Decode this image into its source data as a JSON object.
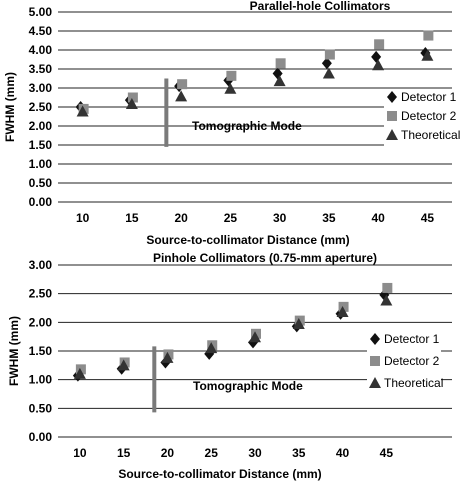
{
  "chart_data": [
    {
      "type": "scatter",
      "title": "Parallel-hole Collimators",
      "xlabel": "Source-to-collimator Distance (mm)",
      "ylabel": "FWHM (mm)",
      "x": [
        10,
        15,
        20,
        25,
        30,
        35,
        40,
        45
      ],
      "ylim": [
        0,
        5
      ],
      "yticks": [
        "0.00",
        "0.50",
        "1.00",
        "1.50",
        "2.00",
        "2.50",
        "3.00",
        "3.50",
        "4.00",
        "4.50",
        "5.00"
      ],
      "xticks": [
        "10",
        "15",
        "20",
        "25",
        "30",
        "35",
        "40",
        "45"
      ],
      "grid": "horizontal",
      "legend_position": "right",
      "series": [
        {
          "name": "Detector 1",
          "marker": "diamond",
          "color": "#111111",
          "values": [
            2.5,
            2.68,
            3.05,
            3.2,
            3.38,
            3.65,
            3.82,
            3.92
          ]
        },
        {
          "name": "Detector 2",
          "marker": "square",
          "color": "#8c8c8c",
          "values": [
            2.45,
            2.75,
            3.1,
            3.32,
            3.65,
            3.88,
            4.15,
            4.38
          ]
        },
        {
          "name": "Theoretical",
          "marker": "triangle",
          "color": "#333333",
          "values": [
            2.38,
            2.58,
            2.78,
            2.98,
            3.18,
            3.38,
            3.6,
            3.85
          ]
        }
      ],
      "annotation": {
        "text": "Tomographic Mode",
        "at_x": 18.5,
        "y_from": 1.45,
        "y_to": 3.25
      }
    },
    {
      "type": "scatter",
      "title": "Pinhole Collimators (0.75-mm aperture)",
      "xlabel": "Source-to-collimator Distance (mm)",
      "ylabel": "FWHM (mm)",
      "x": [
        10,
        15,
        20,
        25,
        30,
        35,
        40,
        45
      ],
      "ylim": [
        0,
        3
      ],
      "yticks": [
        "0.00",
        "0.50",
        "1.00",
        "1.50",
        "2.00",
        "2.50",
        "3.00"
      ],
      "xticks": [
        "10",
        "15",
        "20",
        "25",
        "30",
        "35",
        "40",
        "45"
      ],
      "grid": "horizontal",
      "legend_position": "right",
      "series": [
        {
          "name": "Detector 1",
          "marker": "diamond",
          "color": "#111111",
          "values": [
            1.07,
            1.19,
            1.3,
            1.45,
            1.65,
            1.93,
            2.15,
            2.48
          ]
        },
        {
          "name": "Detector 2",
          "marker": "square",
          "color": "#8c8c8c",
          "values": [
            1.18,
            1.3,
            1.44,
            1.6,
            1.8,
            2.03,
            2.27,
            2.6
          ]
        },
        {
          "name": "Theoretical",
          "marker": "triangle",
          "color": "#333333",
          "values": [
            1.1,
            1.25,
            1.38,
            1.55,
            1.74,
            1.97,
            2.18,
            2.38
          ]
        }
      ],
      "annotation": {
        "text": "Tomographic Mode",
        "at_x": 18.5,
        "y_from": 0.43,
        "y_to": 1.58
      }
    }
  ]
}
